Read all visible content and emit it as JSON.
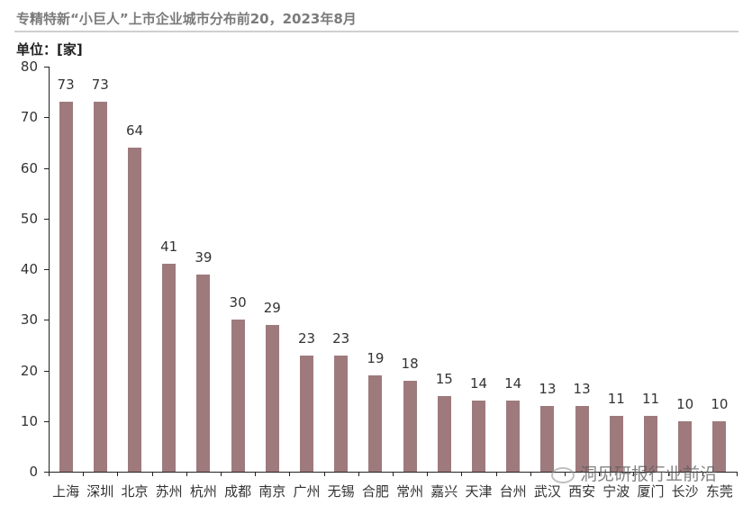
{
  "chart_data": {
    "type": "bar",
    "title": "专精特新“小巨人”上市企业城市分布前20，2023年8月",
    "unit_label": "单位：[家]",
    "xlabel": "",
    "ylabel": "单位：[家]",
    "ylim": [
      0,
      80
    ],
    "yticks": [
      "0",
      "10",
      "20",
      "30",
      "40",
      "50",
      "60",
      "70",
      "80"
    ],
    "grid": false,
    "bar_color": "#9e7a7d",
    "categories": [
      "上海",
      "深圳",
      "北京",
      "苏州",
      "杭州",
      "成都",
      "南京",
      "广州",
      "无锡",
      "合肥",
      "常州",
      "嘉兴",
      "天津",
      "台州",
      "武汉",
      "西安",
      "宁波",
      "厦门",
      "长沙",
      "东莞"
    ],
    "values": [
      73,
      73,
      64,
      41,
      39,
      30,
      29,
      23,
      23,
      19,
      18,
      15,
      14,
      14,
      13,
      13,
      11,
      11,
      10,
      10
    ],
    "data_labels": [
      "73",
      "73",
      "64",
      "41",
      "39",
      "30",
      "29",
      "23",
      "23",
      "19",
      "18",
      "15",
      "14",
      "14",
      "13",
      "13",
      "11",
      "11",
      "10",
      "10"
    ]
  },
  "watermark": "洞见研报行业前沿"
}
